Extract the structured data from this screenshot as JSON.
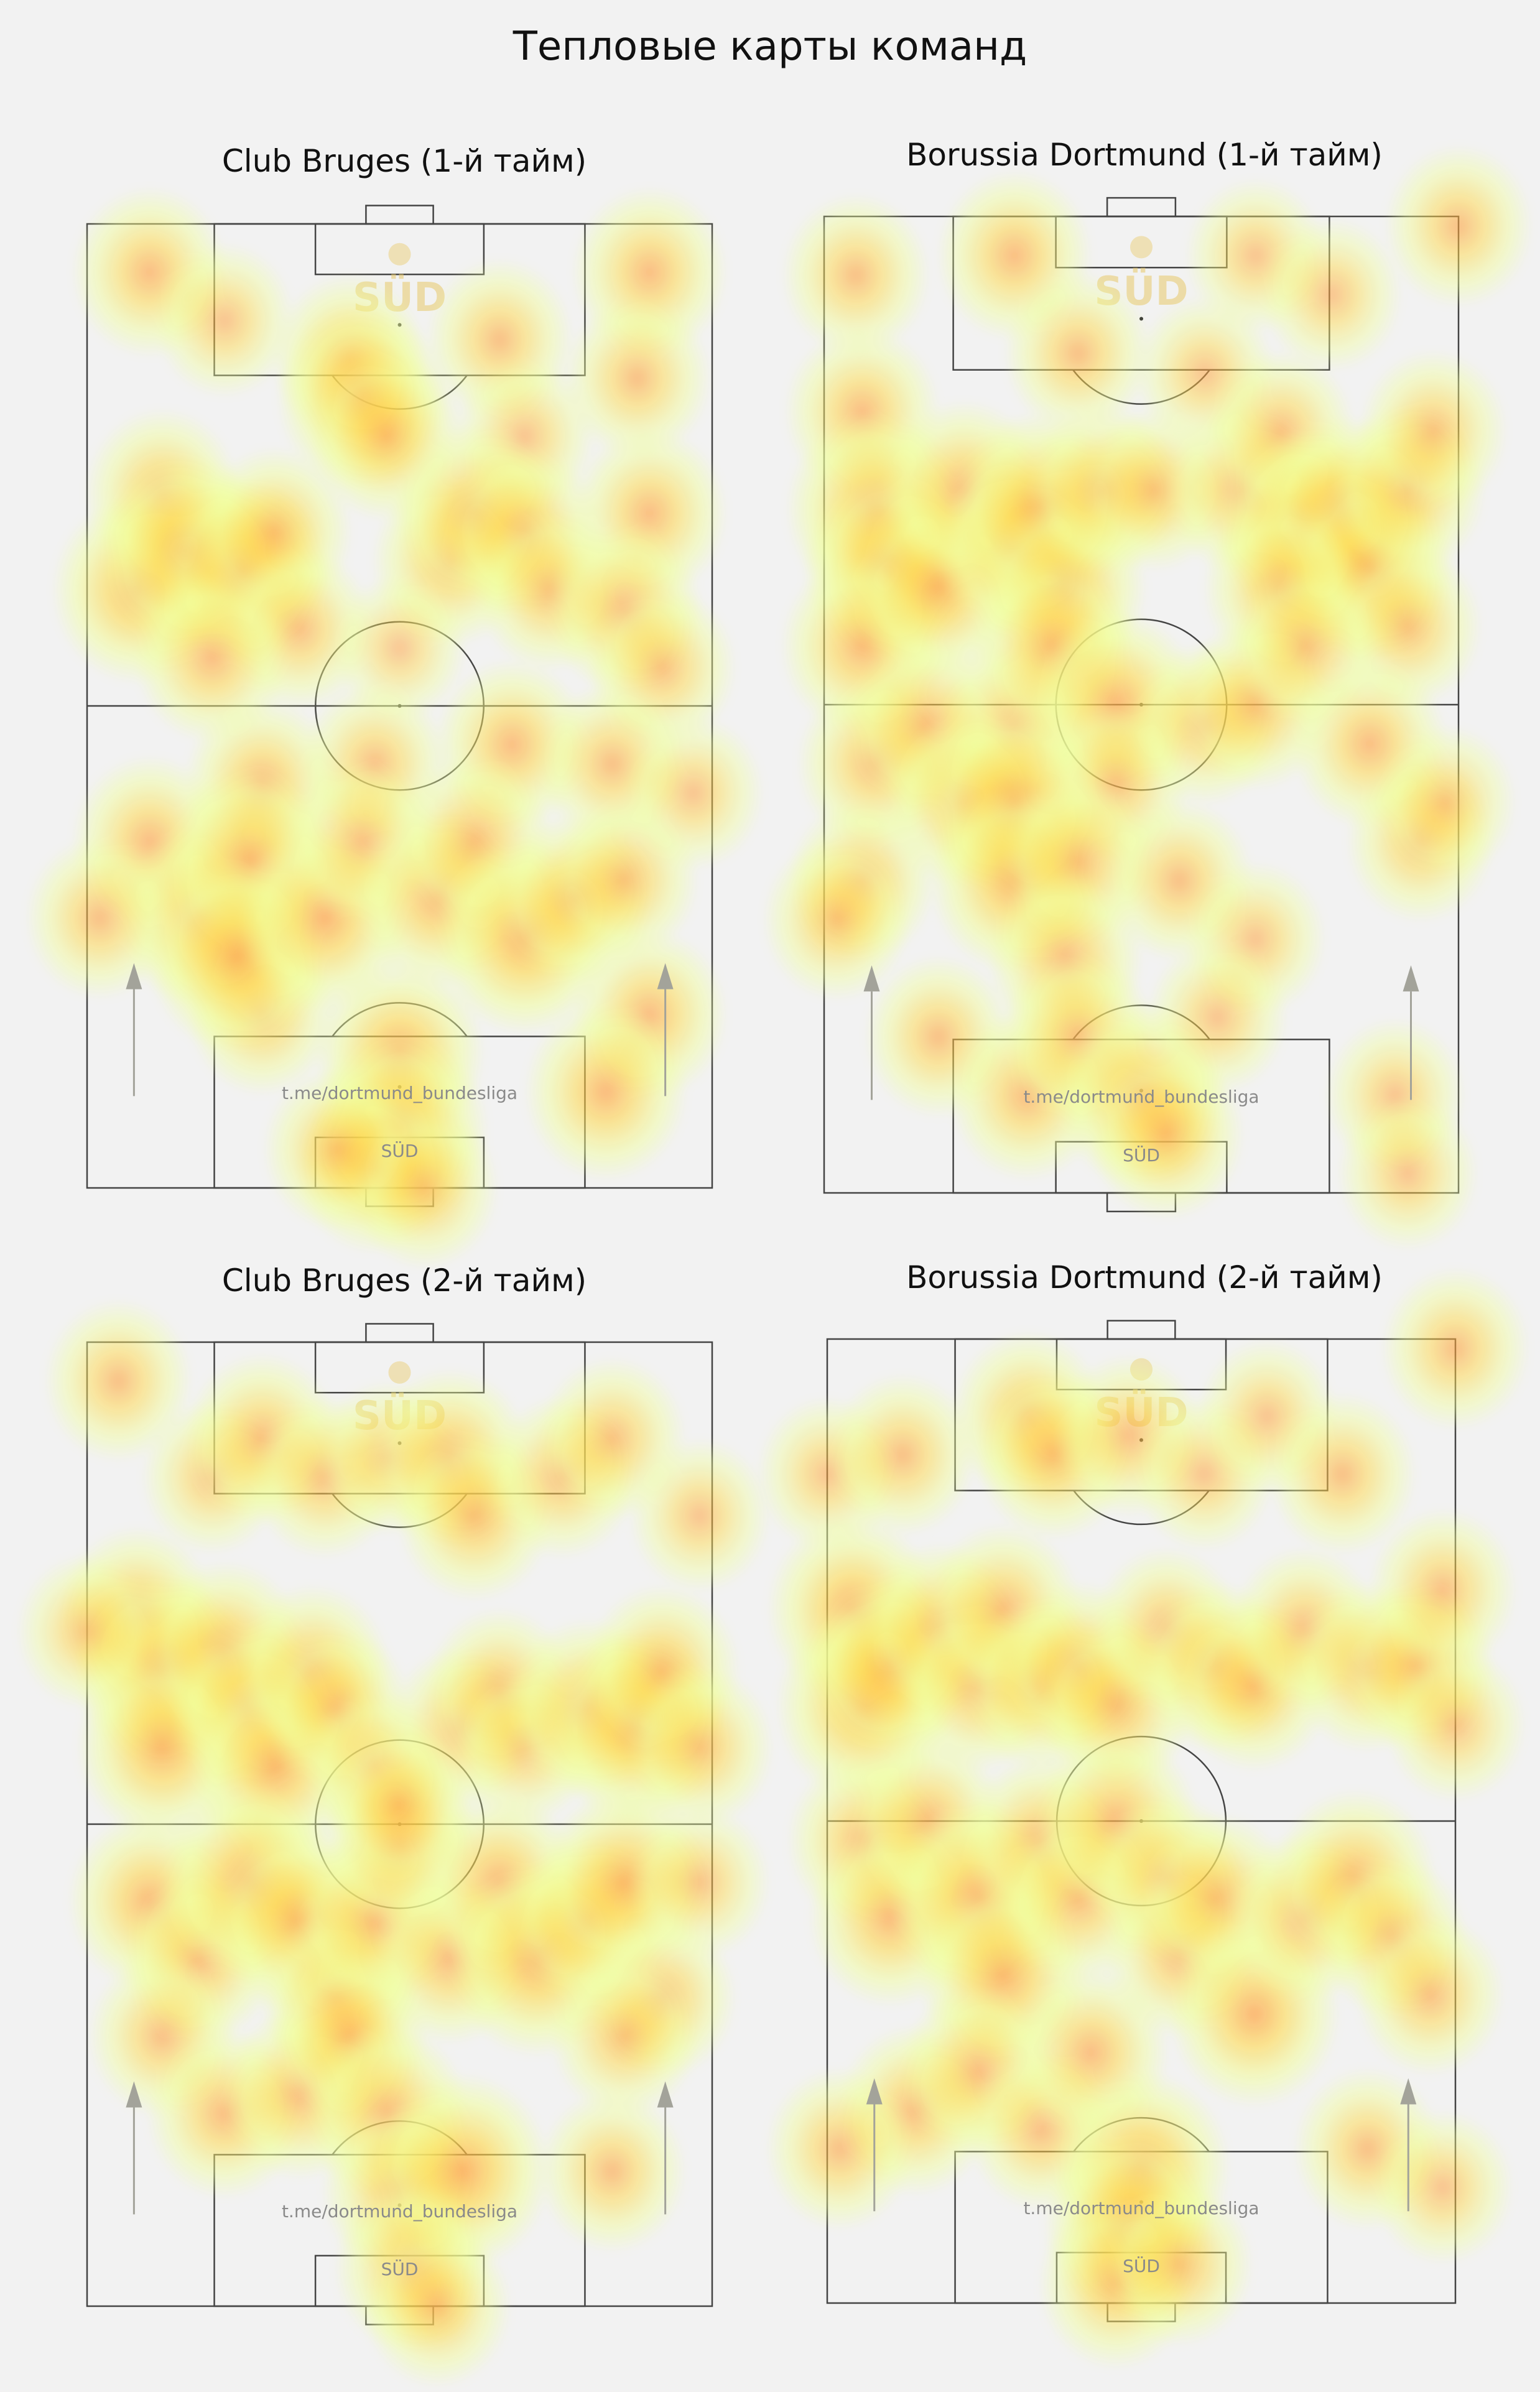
{
  "figure_title": "Тепловые карты команд",
  "watermark": {
    "channel": "t.me/dortmund_bundesliga",
    "brand": "SÜD"
  },
  "colors": {
    "background": "#f2f2f2",
    "low": "#f0ff9a",
    "mid": "#ffd84a",
    "high": "#ff9a3c",
    "arrow": "#a3a39a"
  },
  "chart_data": [
    {
      "type": "heatmap",
      "title": "Club Bruges (1-й тайм)",
      "attack_direction": "up",
      "hotspots": [
        [
          10,
          95,
          0.6
        ],
        [
          22,
          90,
          0.4
        ],
        [
          42,
          86,
          0.6
        ],
        [
          44,
          82,
          0.8
        ],
        [
          48,
          78,
          0.6
        ],
        [
          66,
          88,
          0.5
        ],
        [
          70,
          78,
          0.4
        ],
        [
          90,
          95,
          0.6
        ],
        [
          88,
          84,
          0.5
        ],
        [
          8,
          62,
          0.8
        ],
        [
          12,
          72,
          0.6
        ],
        [
          16,
          66,
          0.9
        ],
        [
          25,
          64,
          0.8
        ],
        [
          30,
          68,
          0.6
        ],
        [
          34,
          58,
          0.5
        ],
        [
          20,
          55,
          0.6
        ],
        [
          58,
          65,
          0.6
        ],
        [
          62,
          70,
          0.7
        ],
        [
          70,
          68,
          0.6
        ],
        [
          74,
          62,
          0.5
        ],
        [
          90,
          70,
          0.6
        ],
        [
          86,
          60,
          0.6
        ],
        [
          92,
          54,
          0.5
        ],
        [
          50,
          56,
          0.3
        ],
        [
          28,
          42,
          0.6
        ],
        [
          46,
          44,
          0.5
        ],
        [
          68,
          46,
          0.6
        ],
        [
          84,
          44,
          0.5
        ],
        [
          97,
          41,
          0.4
        ],
        [
          10,
          36,
          0.6
        ],
        [
          18,
          28,
          0.7
        ],
        [
          26,
          34,
          0.8
        ],
        [
          28,
          18,
          0.5
        ],
        [
          24,
          24,
          0.9
        ],
        [
          38,
          28,
          0.8
        ],
        [
          44,
          36,
          0.5
        ],
        [
          56,
          30,
          0.7
        ],
        [
          62,
          36,
          0.6
        ],
        [
          70,
          26,
          0.9
        ],
        [
          78,
          30,
          0.6
        ],
        [
          86,
          32,
          0.5
        ],
        [
          90,
          18,
          0.6
        ],
        [
          83,
          10,
          0.7
        ],
        [
          50,
          14,
          0.8
        ],
        [
          50,
          6,
          0.9
        ],
        [
          46,
          2,
          0.6
        ],
        [
          54,
          0,
          0.5
        ],
        [
          2,
          28,
          0.5
        ],
        [
          40,
          4,
          0.5
        ]
      ]
    },
    {
      "type": "heatmap",
      "title": "Borussia Dortmund (1-й тайм)",
      "attack_direction": "up",
      "hotspots": [
        [
          5,
          94,
          0.5
        ],
        [
          30,
          96,
          0.6
        ],
        [
          68,
          96,
          0.4
        ],
        [
          80,
          92,
          0.4
        ],
        [
          100,
          99,
          0.5
        ],
        [
          40,
          86,
          0.5
        ],
        [
          60,
          84,
          0.4
        ],
        [
          6,
          80,
          0.6
        ],
        [
          8,
          70,
          0.9
        ],
        [
          10,
          64,
          0.8
        ],
        [
          6,
          56,
          0.7
        ],
        [
          18,
          62,
          0.8
        ],
        [
          22,
          72,
          0.7
        ],
        [
          30,
          66,
          0.6
        ],
        [
          34,
          70,
          0.9
        ],
        [
          38,
          62,
          0.7
        ],
        [
          44,
          72,
          0.6
        ],
        [
          52,
          72,
          0.5
        ],
        [
          66,
          72,
          0.6
        ],
        [
          72,
          78,
          0.5
        ],
        [
          76,
          68,
          0.9
        ],
        [
          82,
          70,
          0.8
        ],
        [
          86,
          64,
          0.8
        ],
        [
          92,
          72,
          0.6
        ],
        [
          96,
          78,
          0.5
        ],
        [
          72,
          62,
          0.6
        ],
        [
          92,
          58,
          0.5
        ],
        [
          30,
          48,
          0.6
        ],
        [
          36,
          56,
          0.7
        ],
        [
          46,
          50,
          0.8
        ],
        [
          46,
          42,
          0.5
        ],
        [
          60,
          48,
          0.5
        ],
        [
          68,
          50,
          0.6
        ],
        [
          76,
          56,
          0.5
        ],
        [
          86,
          46,
          0.6
        ],
        [
          94,
          36,
          0.5
        ],
        [
          98,
          40,
          0.4
        ],
        [
          8,
          44,
          0.6
        ],
        [
          16,
          48,
          0.6
        ],
        [
          22,
          40,
          0.6
        ],
        [
          30,
          40,
          0.9
        ],
        [
          30,
          32,
          0.8
        ],
        [
          40,
          34,
          0.6
        ],
        [
          38,
          24,
          0.6
        ],
        [
          56,
          32,
          0.5
        ],
        [
          68,
          26,
          0.4
        ],
        [
          6,
          32,
          0.5
        ],
        [
          18,
          16,
          0.5
        ],
        [
          32,
          10,
          0.6
        ],
        [
          40,
          16,
          0.6
        ],
        [
          50,
          10,
          0.8
        ],
        [
          54,
          6,
          0.6
        ],
        [
          62,
          18,
          0.4
        ],
        [
          90,
          10,
          0.4
        ],
        [
          92,
          2,
          0.4
        ],
        [
          2,
          28,
          0.5
        ]
      ]
    },
    {
      "type": "heatmap",
      "title": "Club Bruges (2-й тайм)",
      "attack_direction": "up",
      "hotspots": [
        [
          5,
          96,
          0.5
        ],
        [
          20,
          86,
          0.4
        ],
        [
          28,
          90,
          0.6
        ],
        [
          38,
          86,
          0.5
        ],
        [
          48,
          88,
          0.4
        ],
        [
          58,
          88,
          0.7
        ],
        [
          62,
          82,
          0.6
        ],
        [
          76,
          86,
          0.5
        ],
        [
          84,
          90,
          0.5
        ],
        [
          98,
          82,
          0.4
        ],
        [
          8,
          72,
          0.6
        ],
        [
          12,
          66,
          0.9
        ],
        [
          12,
          58,
          0.8
        ],
        [
          22,
          68,
          0.7
        ],
        [
          26,
          62,
          0.6
        ],
        [
          30,
          56,
          0.8
        ],
        [
          36,
          66,
          0.6
        ],
        [
          40,
          62,
          0.5
        ],
        [
          46,
          56,
          0.4
        ],
        [
          60,
          60,
          0.5
        ],
        [
          66,
          64,
          0.5
        ],
        [
          70,
          58,
          0.4
        ],
        [
          80,
          62,
          0.7
        ],
        [
          88,
          60,
          0.9
        ],
        [
          92,
          66,
          0.6
        ],
        [
          98,
          58,
          0.5
        ],
        [
          0,
          70,
          0.4
        ],
        [
          10,
          42,
          0.7
        ],
        [
          18,
          36,
          0.6
        ],
        [
          26,
          44,
          0.9
        ],
        [
          34,
          40,
          0.8
        ],
        [
          40,
          32,
          0.6
        ],
        [
          46,
          40,
          0.7
        ],
        [
          50,
          48,
          0.6
        ],
        [
          50,
          52,
          0.5
        ],
        [
          58,
          36,
          0.6
        ],
        [
          66,
          44,
          0.7
        ],
        [
          72,
          36,
          0.9
        ],
        [
          80,
          40,
          0.6
        ],
        [
          86,
          44,
          0.8
        ],
        [
          92,
          32,
          0.5
        ],
        [
          86,
          28,
          0.5
        ],
        [
          98,
          44,
          0.4
        ],
        [
          12,
          28,
          0.5
        ],
        [
          22,
          20,
          0.6
        ],
        [
          34,
          22,
          0.6
        ],
        [
          42,
          28,
          0.6
        ],
        [
          48,
          20,
          0.7
        ],
        [
          50,
          12,
          0.6
        ],
        [
          60,
          14,
          0.9
        ],
        [
          52,
          4,
          0.6
        ],
        [
          56,
          0,
          0.5
        ],
        [
          84,
          14,
          0.5
        ]
      ]
    },
    {
      "type": "heatmap",
      "title": "Borussia Dortmund (2-й тайм)",
      "attack_direction": "up",
      "hotspots": [
        [
          0,
          86,
          0.4
        ],
        [
          12,
          88,
          0.5
        ],
        [
          32,
          92,
          0.6
        ],
        [
          36,
          88,
          0.6
        ],
        [
          48,
          90,
          0.5
        ],
        [
          60,
          86,
          0.4
        ],
        [
          70,
          92,
          0.4
        ],
        [
          82,
          86,
          0.5
        ],
        [
          100,
          99,
          0.5
        ],
        [
          4,
          72,
          0.8
        ],
        [
          6,
          62,
          0.9
        ],
        [
          10,
          66,
          0.7
        ],
        [
          18,
          70,
          0.6
        ],
        [
          24,
          64,
          0.6
        ],
        [
          28,
          72,
          0.6
        ],
        [
          34,
          64,
          0.6
        ],
        [
          40,
          66,
          0.6
        ],
        [
          46,
          62,
          0.6
        ],
        [
          54,
          70,
          0.5
        ],
        [
          62,
          66,
          0.6
        ],
        [
          68,
          64,
          0.6
        ],
        [
          76,
          70,
          0.5
        ],
        [
          86,
          66,
          0.6
        ],
        [
          94,
          66,
          0.6
        ],
        [
          98,
          74,
          0.5
        ],
        [
          100,
          60,
          0.4
        ],
        [
          6,
          48,
          0.6
        ],
        [
          10,
          40,
          0.7
        ],
        [
          16,
          50,
          0.6
        ],
        [
          24,
          42,
          0.9
        ],
        [
          28,
          34,
          0.8
        ],
        [
          34,
          48,
          0.6
        ],
        [
          40,
          42,
          0.6
        ],
        [
          46,
          50,
          0.7
        ],
        [
          54,
          44,
          0.6
        ],
        [
          56,
          36,
          0.5
        ],
        [
          62,
          42,
          0.6
        ],
        [
          68,
          30,
          0.8
        ],
        [
          76,
          40,
          0.6
        ],
        [
          84,
          44,
          0.7
        ],
        [
          90,
          38,
          0.5
        ],
        [
          96,
          32,
          0.5
        ],
        [
          14,
          20,
          0.6
        ],
        [
          24,
          24,
          0.6
        ],
        [
          34,
          18,
          0.5
        ],
        [
          42,
          26,
          0.6
        ],
        [
          50,
          14,
          0.9
        ],
        [
          48,
          8,
          0.8
        ],
        [
          46,
          2,
          0.6
        ],
        [
          56,
          4,
          0.5
        ],
        [
          86,
          16,
          0.5
        ],
        [
          98,
          12,
          0.4
        ],
        [
          2,
          16,
          0.5
        ]
      ]
    }
  ]
}
